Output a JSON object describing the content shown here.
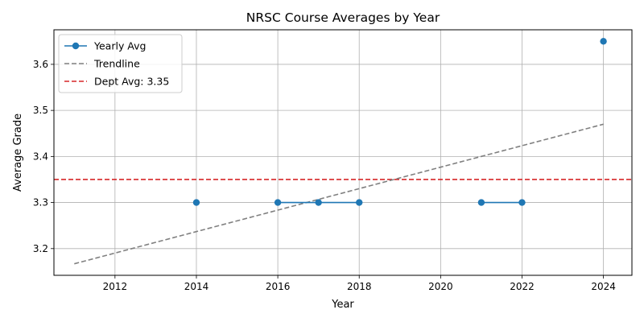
{
  "chart_data": {
    "type": "line",
    "title": "NRSC Course Averages by Year",
    "xlabel": "Year",
    "ylabel": "Average Grade",
    "xlim": [
      2010.5,
      2024.7
    ],
    "ylim": [
      3.142,
      3.675
    ],
    "x_ticks": [
      2012,
      2014,
      2016,
      2018,
      2020,
      2022,
      2024
    ],
    "y_ticks": [
      3.2,
      3.3,
      3.4,
      3.5,
      3.6
    ],
    "x_tick_labels": [
      "2012",
      "2014",
      "2016",
      "2018",
      "2020",
      "2022",
      "2024"
    ],
    "y_tick_labels": [
      "3.2",
      "3.3",
      "3.4",
      "3.5",
      "3.6"
    ],
    "grid": true,
    "legend_position": "top-left",
    "series": [
      {
        "name": "Yearly Avg",
        "color": "#1f77b4",
        "style": "solid-with-markers",
        "segments": [
          [
            {
              "x": 2014,
              "y": 3.3
            }
          ],
          [
            {
              "x": 2016,
              "y": 3.3
            },
            {
              "x": 2017,
              "y": 3.3
            },
            {
              "x": 2018,
              "y": 3.3
            }
          ],
          [
            {
              "x": 2021,
              "y": 3.3
            },
            {
              "x": 2022,
              "y": 3.3
            }
          ],
          [
            {
              "x": 2024,
              "y": 3.65
            }
          ]
        ]
      },
      {
        "name": "Trendline",
        "color": "#808080",
        "style": "dashed",
        "points": [
          {
            "x": 2011,
            "y": 3.167
          },
          {
            "x": 2024,
            "y": 3.47
          }
        ]
      },
      {
        "name": "Dept Avg: 3.35",
        "color": "#d62728",
        "style": "dashed-horizontal",
        "y": 3.35
      }
    ]
  }
}
